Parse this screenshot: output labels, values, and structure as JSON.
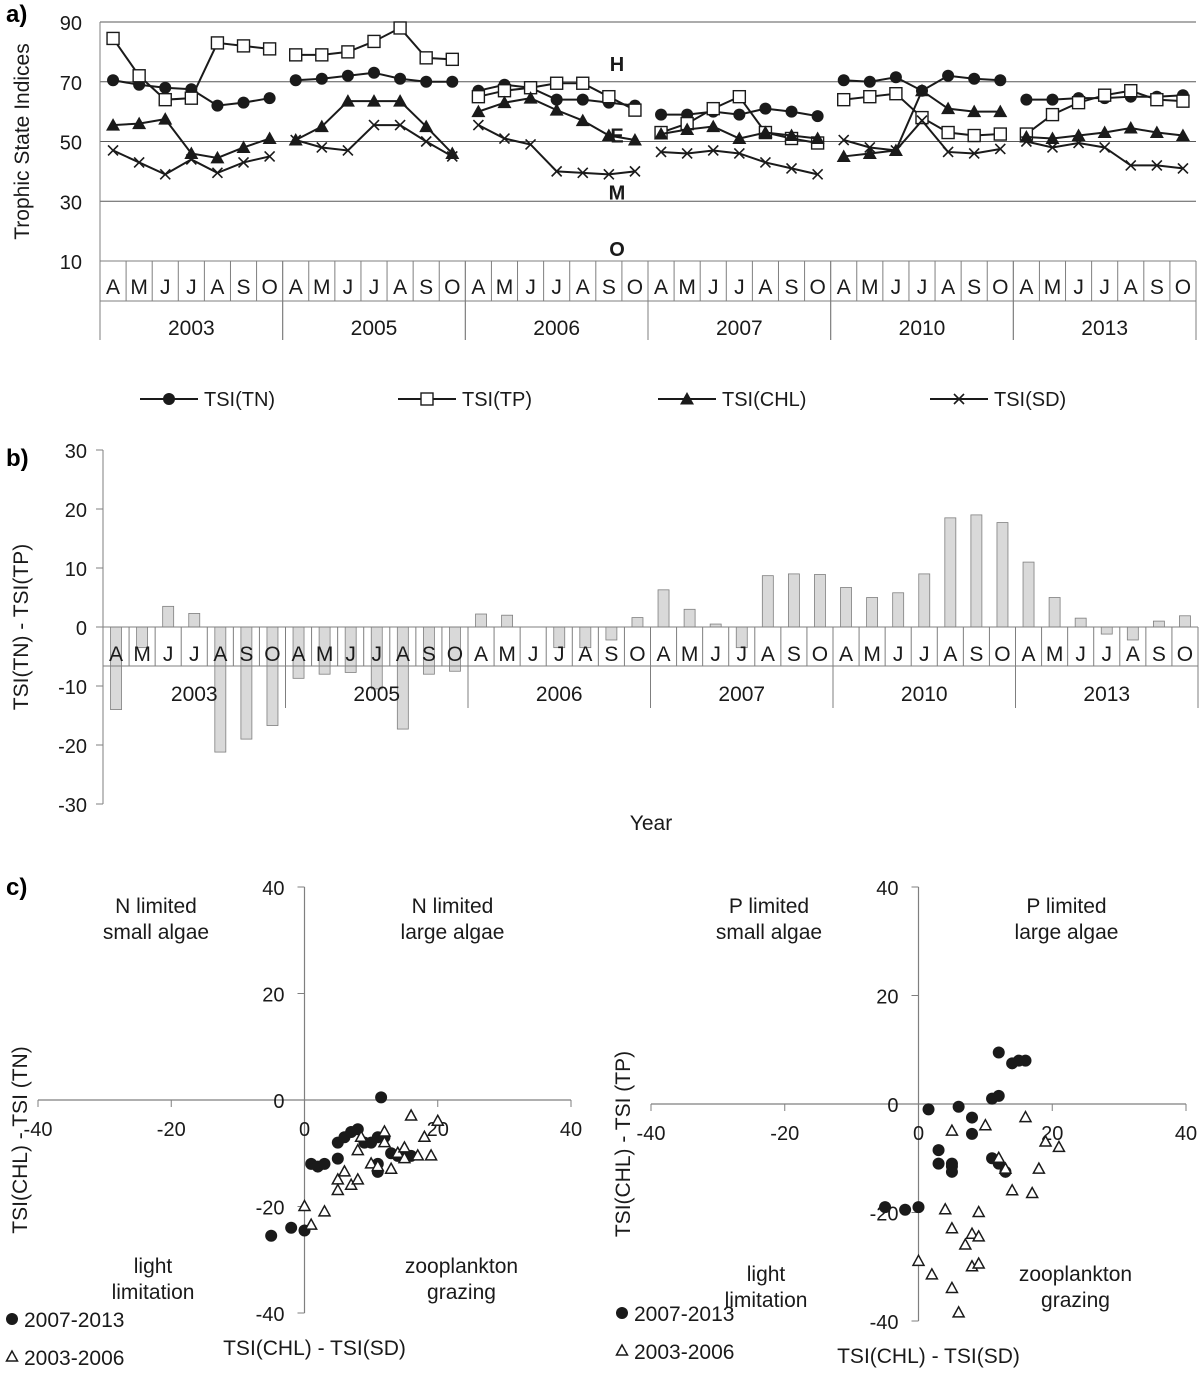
{
  "panel_labels": {
    "a": "a)",
    "b": "b)",
    "c": "c)"
  },
  "chart_data": [
    {
      "id": "a",
      "type": "line",
      "ylabel": "Trophic State Indices",
      "ylim": [
        10,
        90
      ],
      "yticks": [
        10,
        30,
        50,
        70,
        90
      ],
      "grid": true,
      "month_labels": [
        "A",
        "M",
        "J",
        "J",
        "A",
        "S",
        "O"
      ],
      "years": [
        "2003",
        "2005",
        "2006",
        "2007",
        "2010",
        "2013"
      ],
      "zone_labels": [
        {
          "text": "H",
          "value": 76
        },
        {
          "text": "E",
          "value": 52
        },
        {
          "text": "M",
          "value": 33
        },
        {
          "text": "O",
          "value": 14
        }
      ],
      "legend_position": "below",
      "series": [
        {
          "name": "TSI(TN)",
          "marker": "circle",
          "values": [
            [
              70.5,
              69,
              68,
              67.5,
              62,
              63,
              64.5
            ],
            [
              70.5,
              71,
              72,
              73,
              71,
              70,
              70
            ],
            [
              67,
              69,
              68,
              64,
              64,
              63,
              62
            ],
            [
              59,
              59,
              60,
              59,
              61,
              60,
              58.5
            ],
            [
              70.5,
              70,
              71.5,
              67,
              72,
              71,
              70.5
            ],
            [
              64,
              64,
              64.5,
              64.5,
              65,
              65,
              65.5
            ]
          ]
        },
        {
          "name": "TSI(TP)",
          "marker": "square",
          "values": [
            [
              84.5,
              72,
              64,
              64.5,
              83,
              82,
              81
            ],
            [
              79,
              79,
              80,
              83.5,
              88,
              78,
              77.5
            ],
            [
              65,
              67,
              68,
              69.5,
              69.5,
              65,
              60.5
            ],
            [
              53,
              56,
              61,
              65,
              53,
              51,
              49.5
            ],
            [
              64,
              65,
              66,
              58,
              53,
              52,
              52.5
            ],
            [
              52.5,
              59,
              63,
              65.5,
              67,
              64,
              63.5
            ]
          ]
        },
        {
          "name": "TSI(CHL)",
          "marker": "triangle",
          "values": [
            [
              55.5,
              56,
              57.5,
              46,
              44.5,
              48,
              51
            ],
            [
              50.5,
              55,
              63.5,
              63.5,
              63.5,
              55,
              46
            ],
            [
              60,
              63,
              64.5,
              60.5,
              57,
              52,
              50.5
            ],
            [
              52.5,
              54,
              55,
              51,
              53,
              52,
              51
            ],
            [
              45,
              46,
              47,
              67,
              61,
              60,
              60
            ],
            [
              51.5,
              51,
              52,
              53,
              54.5,
              53,
              52
            ]
          ]
        },
        {
          "name": "TSI(SD)",
          "marker": "x",
          "values": [
            [
              47,
              43,
              39,
              44,
              39.5,
              43,
              45
            ],
            [
              50.5,
              48,
              47,
              55.5,
              55.5,
              50,
              45
            ],
            [
              55.5,
              51,
              49,
              40,
              39.5,
              39,
              40
            ],
            [
              46.5,
              46,
              47,
              46,
              43,
              41,
              39
            ],
            [
              50.5,
              48,
              47,
              57,
              46.5,
              46,
              47.5
            ],
            [
              50,
              48,
              49.5,
              48,
              42,
              42,
              41
            ]
          ]
        }
      ]
    },
    {
      "id": "b",
      "type": "bar",
      "ylabel": "TSI(TN) - TSI(TP)",
      "xlabel": "Year",
      "ylim": [
        -30,
        30
      ],
      "yticks": [
        -30,
        -20,
        -10,
        0,
        10,
        20,
        30
      ],
      "month_labels": [
        "A",
        "M",
        "J",
        "J",
        "A",
        "S",
        "O"
      ],
      "years": [
        "2003",
        "2005",
        "2006",
        "2007",
        "2010",
        "2013"
      ],
      "values": [
        [
          -14,
          -3.5,
          3.5,
          2.3,
          -21.2,
          -19,
          -16.7
        ],
        [
          -8.7,
          -8,
          -7.7,
          -10.5,
          -17.3,
          -8,
          -7.5
        ],
        [
          2.2,
          2,
          0,
          -3.5,
          -3.5,
          -2.2,
          1.6
        ],
        [
          6.3,
          3,
          0.5,
          -3.5,
          8.7,
          9,
          8.9
        ],
        [
          6.7,
          5,
          5.8,
          9,
          18.5,
          19,
          17.7
        ],
        [
          11,
          5,
          1.5,
          -1.2,
          -2.2,
          1,
          1.9
        ]
      ]
    },
    {
      "id": "c-left",
      "type": "scatter",
      "xlabel": "TSI(CHL) - TSI(SD)",
      "ylabel": "TSI(CHL) - TSI (TN)",
      "xlim": [
        -40,
        40
      ],
      "ylim": [
        -40,
        40
      ],
      "xticks": [
        -40,
        -20,
        0,
        20,
        40
      ],
      "yticks": [
        -40,
        -20,
        0,
        20,
        40
      ],
      "quadrant_labels": {
        "top_left": [
          "N limited",
          "small algae"
        ],
        "top_right": [
          "N limited",
          "large algae"
        ],
        "bottom_left": [
          "light",
          "limitation"
        ],
        "bottom_right": [
          "zooplankton",
          "grazing"
        ]
      },
      "legend_position": "bottom-left",
      "series": [
        {
          "name": "2007-2013",
          "marker": "circle",
          "points": [
            [
              -5,
              -25.5
            ],
            [
              -2,
              -24
            ],
            [
              0,
              -24.5
            ],
            [
              1,
              -12
            ],
            [
              2,
              -12.5
            ],
            [
              3,
              -12
            ],
            [
              5,
              -11
            ],
            [
              5,
              -8
            ],
            [
              6,
              -7
            ],
            [
              7,
              -6
            ],
            [
              8,
              -5.5
            ],
            [
              9,
              -8
            ],
            [
              10,
              -8
            ],
            [
              11,
              -7
            ],
            [
              11,
              -13.5
            ],
            [
              11,
              -12
            ],
            [
              11.5,
              0.5
            ],
            [
              12,
              -7
            ],
            [
              13,
              -10
            ],
            [
              14,
              -10.5
            ],
            [
              15,
              -10.5
            ],
            [
              16,
              -10.5
            ]
          ]
        },
        {
          "name": "2003-2006",
          "marker": "triangle",
          "points": [
            [
              0,
              -20
            ],
            [
              1,
              -23.5
            ],
            [
              3,
              -21
            ],
            [
              5,
              -15
            ],
            [
              5,
              -17
            ],
            [
              6,
              -13.5
            ],
            [
              7,
              -16
            ],
            [
              8,
              -15
            ],
            [
              8,
              -9.5
            ],
            [
              8.5,
              -7
            ],
            [
              10,
              -12
            ],
            [
              11,
              -12.5
            ],
            [
              12,
              -8
            ],
            [
              12,
              -6
            ],
            [
              13,
              -13
            ],
            [
              14,
              -10
            ],
            [
              15,
              -11
            ],
            [
              15,
              -9
            ],
            [
              16,
              -3
            ],
            [
              17,
              -10.5
            ],
            [
              18,
              -7
            ],
            [
              19,
              -10.5
            ],
            [
              20,
              -4
            ]
          ]
        }
      ]
    },
    {
      "id": "c-right",
      "type": "scatter",
      "xlabel": "TSI(CHL) - TSI(SD)",
      "ylabel": "TSI(CHL) - TSI (TP)",
      "xlim": [
        -40,
        40
      ],
      "ylim": [
        -40,
        40
      ],
      "xticks": [
        -40,
        -20,
        0,
        20,
        40
      ],
      "yticks": [
        -40,
        -20,
        0,
        20,
        40
      ],
      "quadrant_labels": {
        "top_left": [
          "P limited",
          "small algae"
        ],
        "top_right": [
          "P limited",
          "large algae"
        ],
        "bottom_left": [
          "light",
          "limitation"
        ],
        "bottom_right": [
          "zooplankton",
          "grazing"
        ]
      },
      "legend_position": "bottom-left",
      "series": [
        {
          "name": "2007-2013",
          "marker": "circle",
          "points": [
            [
              -5,
              -19
            ],
            [
              -2,
              -19.5
            ],
            [
              0,
              -19
            ],
            [
              1.5,
              -1
            ],
            [
              3,
              -8.5
            ],
            [
              3,
              -11
            ],
            [
              5,
              -11
            ],
            [
              5,
              -12.5
            ],
            [
              5,
              -11.5
            ],
            [
              6,
              -0.5
            ],
            [
              8,
              -2.5
            ],
            [
              8,
              -5.5
            ],
            [
              11,
              1
            ],
            [
              11,
              -10
            ],
            [
              12,
              -11
            ],
            [
              12,
              1.5
            ],
            [
              13,
              -12.5
            ],
            [
              14,
              7.5
            ],
            [
              15,
              8
            ],
            [
              16,
              8
            ],
            [
              12,
              9.5
            ]
          ]
        },
        {
          "name": "2003-2006",
          "marker": "triangle",
          "points": [
            [
              0,
              -29
            ],
            [
              2,
              -31.5
            ],
            [
              4,
              -19.5
            ],
            [
              5,
              -5
            ],
            [
              5,
              -23
            ],
            [
              5,
              -34
            ],
            [
              6,
              -38.5
            ],
            [
              7,
              -26
            ],
            [
              8,
              -30
            ],
            [
              8,
              -24
            ],
            [
              9,
              -29.5
            ],
            [
              9,
              -20
            ],
            [
              9,
              -24.5
            ],
            [
              10,
              -4
            ],
            [
              12,
              -10
            ],
            [
              13,
              -12
            ],
            [
              14,
              -16
            ],
            [
              16,
              -2.5
            ],
            [
              17,
              -16.5
            ],
            [
              18,
              -12
            ],
            [
              19,
              -7
            ],
            [
              21,
              -8
            ]
          ]
        }
      ]
    }
  ]
}
